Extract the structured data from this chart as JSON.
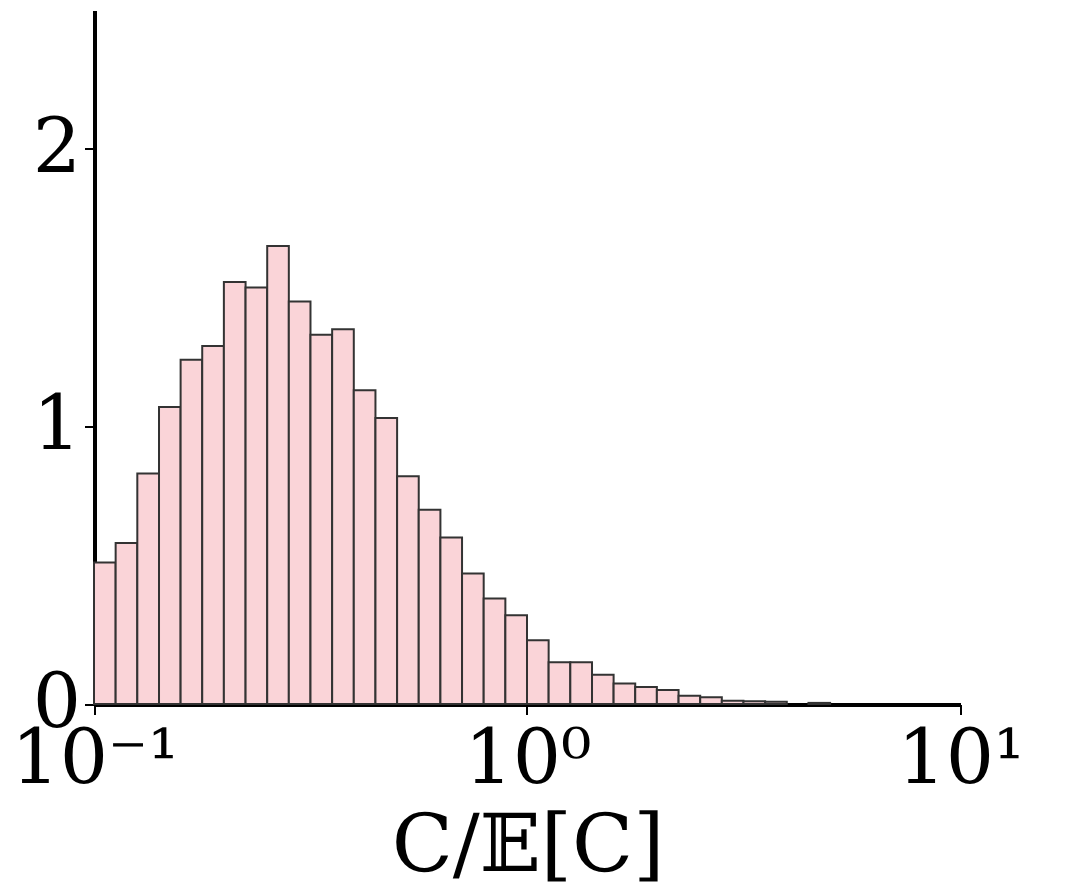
{
  "chart_data": {
    "type": "histogram",
    "xlabel": "C/𝔼[C]",
    "log": "x",
    "color": "#fad4d8",
    "bins": [
      0.1,
      0.1122,
      0.1259,
      0.1413,
      0.1585,
      0.1778,
      0.1995,
      0.2239,
      0.2512,
      0.2818,
      0.3162,
      0.3548,
      0.3981,
      0.4467,
      0.5012,
      0.5623,
      0.631,
      0.7079,
      0.7943,
      0.8913,
      1.0,
      1.122,
      1.259,
      1.413,
      1.585,
      1.778,
      1.995,
      2.239,
      2.512,
      2.818,
      3.162,
      3.548,
      3.981,
      4.467,
      5.012,
      5.623
    ],
    "values": [
      0.51,
      0.58,
      0.83,
      1.07,
      1.24,
      1.29,
      1.52,
      1.5,
      1.65,
      1.45,
      1.33,
      1.35,
      1.13,
      1.03,
      0.82,
      0.7,
      0.6,
      0.47,
      0.38,
      0.32,
      0.23,
      0.15,
      0.15,
      0.105,
      0.074,
      0.061,
      0.05,
      0.03,
      0.024,
      0.012,
      0.01,
      0.008,
      null,
      0.004,
      null
    ],
    "xlim": [
      0.1,
      10
    ],
    "xticks": [
      {
        "value": 0.1,
        "label": "10⁻¹"
      },
      {
        "value": 1,
        "label": "10⁰"
      },
      {
        "value": 10,
        "label": "10¹"
      }
    ],
    "ylim": [
      0,
      2.5
    ],
    "yticks": [
      0,
      1,
      2
    ],
    "grid": false
  }
}
